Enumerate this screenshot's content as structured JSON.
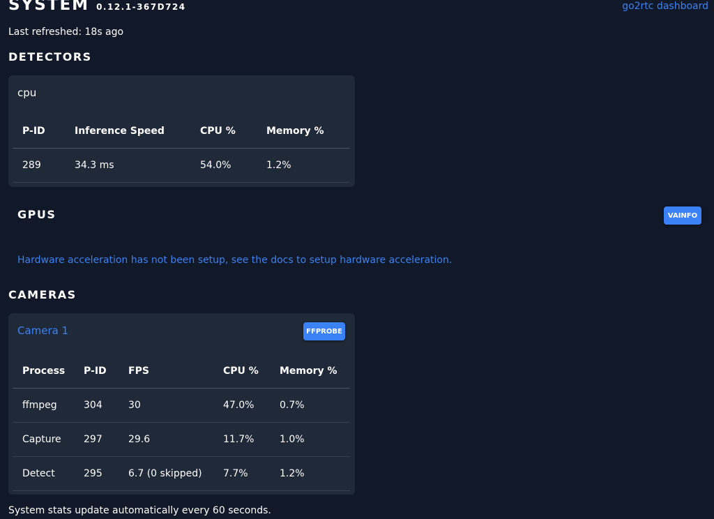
{
  "header": {
    "title": "SYSTEM",
    "version": "0.12.1-367D724",
    "go2rtc_link": "go2rtc dashboard",
    "last_refreshed": "Last refreshed: 18s ago"
  },
  "detectors": {
    "section_title": "DETECTORS",
    "name": "cpu",
    "columns": [
      "P-ID",
      "Inference Speed",
      "CPU %",
      "Memory %"
    ],
    "rows": [
      {
        "pid": "289",
        "inference_speed": "34.3 ms",
        "cpu": "54.0%",
        "memory": "1.2%"
      }
    ]
  },
  "gpus": {
    "section_title": "GPUS",
    "vainfo_button": "VAINFO",
    "message": "Hardware acceleration has not been setup, see the docs to setup hardware acceleration."
  },
  "cameras": {
    "section_title": "CAMERAS",
    "name": "Camera 1",
    "ffprobe_button": "FFPROBE",
    "columns": [
      "Process",
      "P-ID",
      "FPS",
      "CPU %",
      "Memory %"
    ],
    "rows": [
      {
        "process": "ffmpeg",
        "pid": "304",
        "fps": "30",
        "cpu": "47.0%",
        "memory": "0.7%"
      },
      {
        "process": "Capture",
        "pid": "297",
        "fps": "29.6",
        "cpu": "11.7%",
        "memory": "1.0%"
      },
      {
        "process": "Detect",
        "pid": "295",
        "fps": "6.7 (0 skipped)",
        "cpu": "7.7%",
        "memory": "1.2%"
      }
    ]
  },
  "footer": {
    "note": "System stats update automatically every 60 seconds."
  },
  "colors": {
    "background": "#111827",
    "card": "#1f2937",
    "accent": "#3b82f6",
    "text": "#ffffff"
  }
}
